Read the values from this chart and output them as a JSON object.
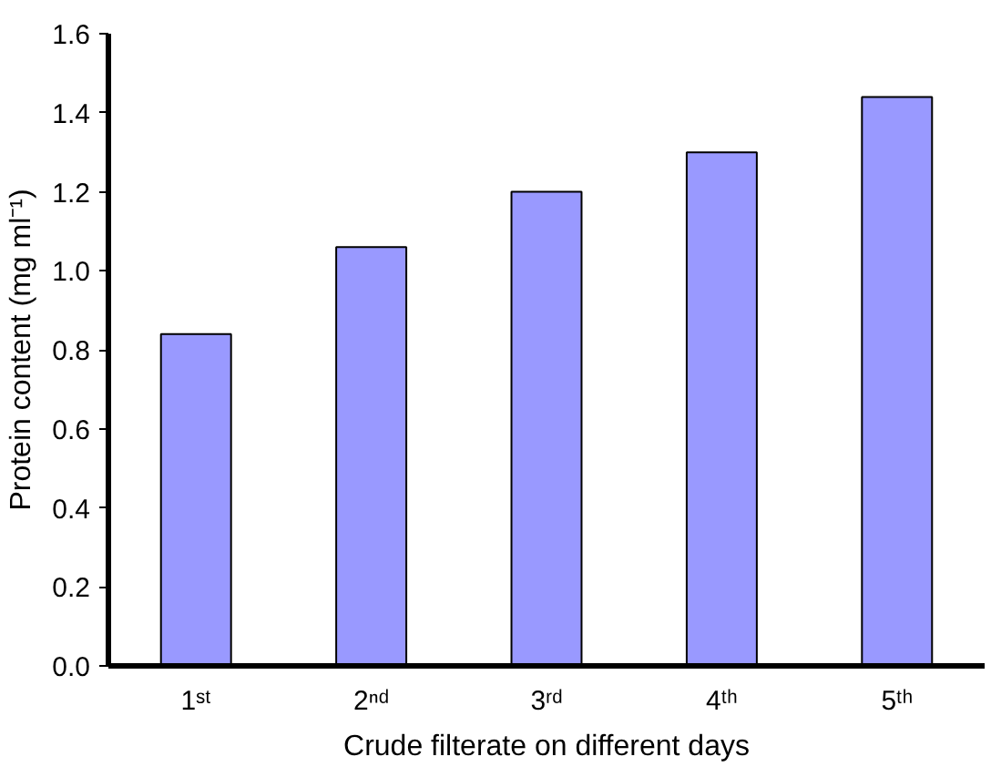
{
  "chart_data": {
    "type": "bar",
    "xlabel": "Crude filterate on different days",
    "ylabel": "Protein content (mg ml⁻¹)",
    "categories": [
      "1ˢᵗ",
      "2ⁿᵈ",
      "3ʳᵈ",
      "4ᵗʰ",
      "5ᵗʰ"
    ],
    "values": [
      0.84,
      1.06,
      1.2,
      1.3,
      1.44
    ],
    "color": "#9999ff",
    "ylim": [
      0,
      1.6
    ],
    "yticks": [
      {
        "value": 0,
        "label": "0.0"
      },
      {
        "value": 0.2,
        "label": "0.2"
      },
      {
        "value": 0.4,
        "label": "0.4"
      },
      {
        "value": 0.6,
        "label": "0.6"
      },
      {
        "value": 0.8,
        "label": "0.8"
      },
      {
        "value": 1.0,
        "label": "1.0"
      },
      {
        "value": 1.2,
        "label": "1.2"
      },
      {
        "value": 1.4,
        "label": "1.4"
      },
      {
        "value": 1.6,
        "label": "1.6"
      }
    ],
    "grid": false
  }
}
